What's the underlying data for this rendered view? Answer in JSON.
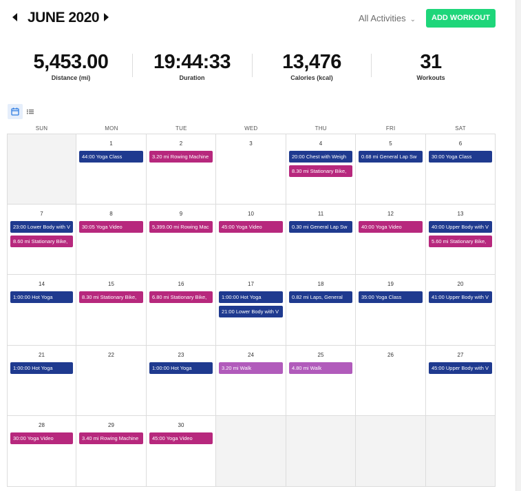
{
  "header": {
    "month_title": "JUNE 2020",
    "prev_icon": "caret-left-icon",
    "next_icon": "caret-right-icon",
    "filter_label": "All Activities",
    "filter_icon": "chevron-down-icon",
    "add_workout_label": "ADD WORKOUT"
  },
  "colors": {
    "accent_green": "#1ed67a",
    "navy": "#1f3a8f",
    "magenta": "#b7287d",
    "purple": "#b15bbb",
    "outside_day": "#f3f3f3"
  },
  "stats": [
    {
      "value": "5,453.00",
      "label": "Distance (mi)"
    },
    {
      "value": "19:44:33",
      "label": "Duration"
    },
    {
      "value": "13,476",
      "label": "Calories (kcal)"
    },
    {
      "value": "31",
      "label": "Workouts"
    }
  ],
  "view_toggle": {
    "calendar_icon": "calendar-icon",
    "list_icon": "list-icon",
    "active": "calendar"
  },
  "weekdays": [
    "SUN",
    "MON",
    "TUE",
    "WED",
    "THU",
    "FRI",
    "SAT"
  ],
  "weeks": [
    [
      {
        "day": "",
        "outside": true,
        "events": []
      },
      {
        "day": "1",
        "events": [
          {
            "text": "44:00 Yoga Class",
            "color": "navy"
          }
        ]
      },
      {
        "day": "2",
        "events": [
          {
            "text": "3.20 mi Rowing Machine",
            "color": "magenta"
          }
        ]
      },
      {
        "day": "3",
        "events": []
      },
      {
        "day": "4",
        "events": [
          {
            "text": "20:00 Chest with Weigh",
            "color": "navy"
          },
          {
            "text": "8.30 mi Stationary Bike,",
            "color": "magenta"
          }
        ]
      },
      {
        "day": "5",
        "events": [
          {
            "text": "0.68 mi General Lap Sw",
            "color": "navy"
          }
        ]
      },
      {
        "day": "6",
        "events": [
          {
            "text": "30:00 Yoga Class",
            "color": "navy"
          }
        ]
      }
    ],
    [
      {
        "day": "7",
        "events": [
          {
            "text": "23:00 Lower Body with V",
            "color": "navy"
          },
          {
            "text": "8.60 mi Stationary Bike,",
            "color": "magenta"
          }
        ]
      },
      {
        "day": "8",
        "events": [
          {
            "text": "30:05 Yoga Video",
            "color": "magenta"
          }
        ]
      },
      {
        "day": "9",
        "events": [
          {
            "text": "5,399.00 mi Rowing Mac",
            "color": "magenta"
          }
        ]
      },
      {
        "day": "10",
        "events": [
          {
            "text": "45:00 Yoga Video",
            "color": "magenta"
          }
        ]
      },
      {
        "day": "11",
        "events": [
          {
            "text": "0.30 mi General Lap Sw",
            "color": "navy"
          }
        ]
      },
      {
        "day": "12",
        "events": [
          {
            "text": "40:00 Yoga Video",
            "color": "magenta"
          }
        ]
      },
      {
        "day": "13",
        "events": [
          {
            "text": "40:00 Upper Body with V",
            "color": "navy"
          },
          {
            "text": "5.60 mi Stationary Bike,",
            "color": "magenta"
          }
        ]
      }
    ],
    [
      {
        "day": "14",
        "events": [
          {
            "text": "1:00:00 Hot Yoga",
            "color": "navy"
          }
        ]
      },
      {
        "day": "15",
        "events": [
          {
            "text": "8.30 mi Stationary Bike,",
            "color": "magenta"
          }
        ]
      },
      {
        "day": "16",
        "events": [
          {
            "text": "6.80 mi Stationary Bike,",
            "color": "magenta"
          }
        ]
      },
      {
        "day": "17",
        "events": [
          {
            "text": "1:00:00 Hot Yoga",
            "color": "navy"
          },
          {
            "text": "21:00 Lower Body with V",
            "color": "navy"
          }
        ]
      },
      {
        "day": "18",
        "events": [
          {
            "text": "0.82 mi Laps, General",
            "color": "navy"
          }
        ]
      },
      {
        "day": "19",
        "events": [
          {
            "text": "35:00 Yoga Class",
            "color": "navy"
          }
        ]
      },
      {
        "day": "20",
        "events": [
          {
            "text": "41:00 Upper Body with V",
            "color": "navy"
          }
        ]
      }
    ],
    [
      {
        "day": "21",
        "events": [
          {
            "text": "1:00:00 Hot Yoga",
            "color": "navy"
          }
        ]
      },
      {
        "day": "22",
        "events": []
      },
      {
        "day": "23",
        "events": [
          {
            "text": "1:00:00 Hot Yoga",
            "color": "navy"
          }
        ]
      },
      {
        "day": "24",
        "events": [
          {
            "text": "3.20 mi Walk",
            "color": "purple"
          }
        ]
      },
      {
        "day": "25",
        "events": [
          {
            "text": "4.80 mi Walk",
            "color": "purple"
          }
        ]
      },
      {
        "day": "26",
        "events": []
      },
      {
        "day": "27",
        "events": [
          {
            "text": "45:00 Upper Body with V",
            "color": "navy"
          }
        ]
      }
    ],
    [
      {
        "day": "28",
        "events": [
          {
            "text": "30:00 Yoga Video",
            "color": "magenta"
          }
        ]
      },
      {
        "day": "29",
        "events": [
          {
            "text": "3.40 mi Rowing Machine",
            "color": "magenta"
          }
        ]
      },
      {
        "day": "30",
        "events": [
          {
            "text": "45:00 Yoga Video",
            "color": "magenta"
          }
        ]
      },
      {
        "day": "",
        "outside": true,
        "events": []
      },
      {
        "day": "",
        "outside": true,
        "events": []
      },
      {
        "day": "",
        "outside": true,
        "events": []
      },
      {
        "day": "",
        "outside": true,
        "events": []
      }
    ]
  ]
}
